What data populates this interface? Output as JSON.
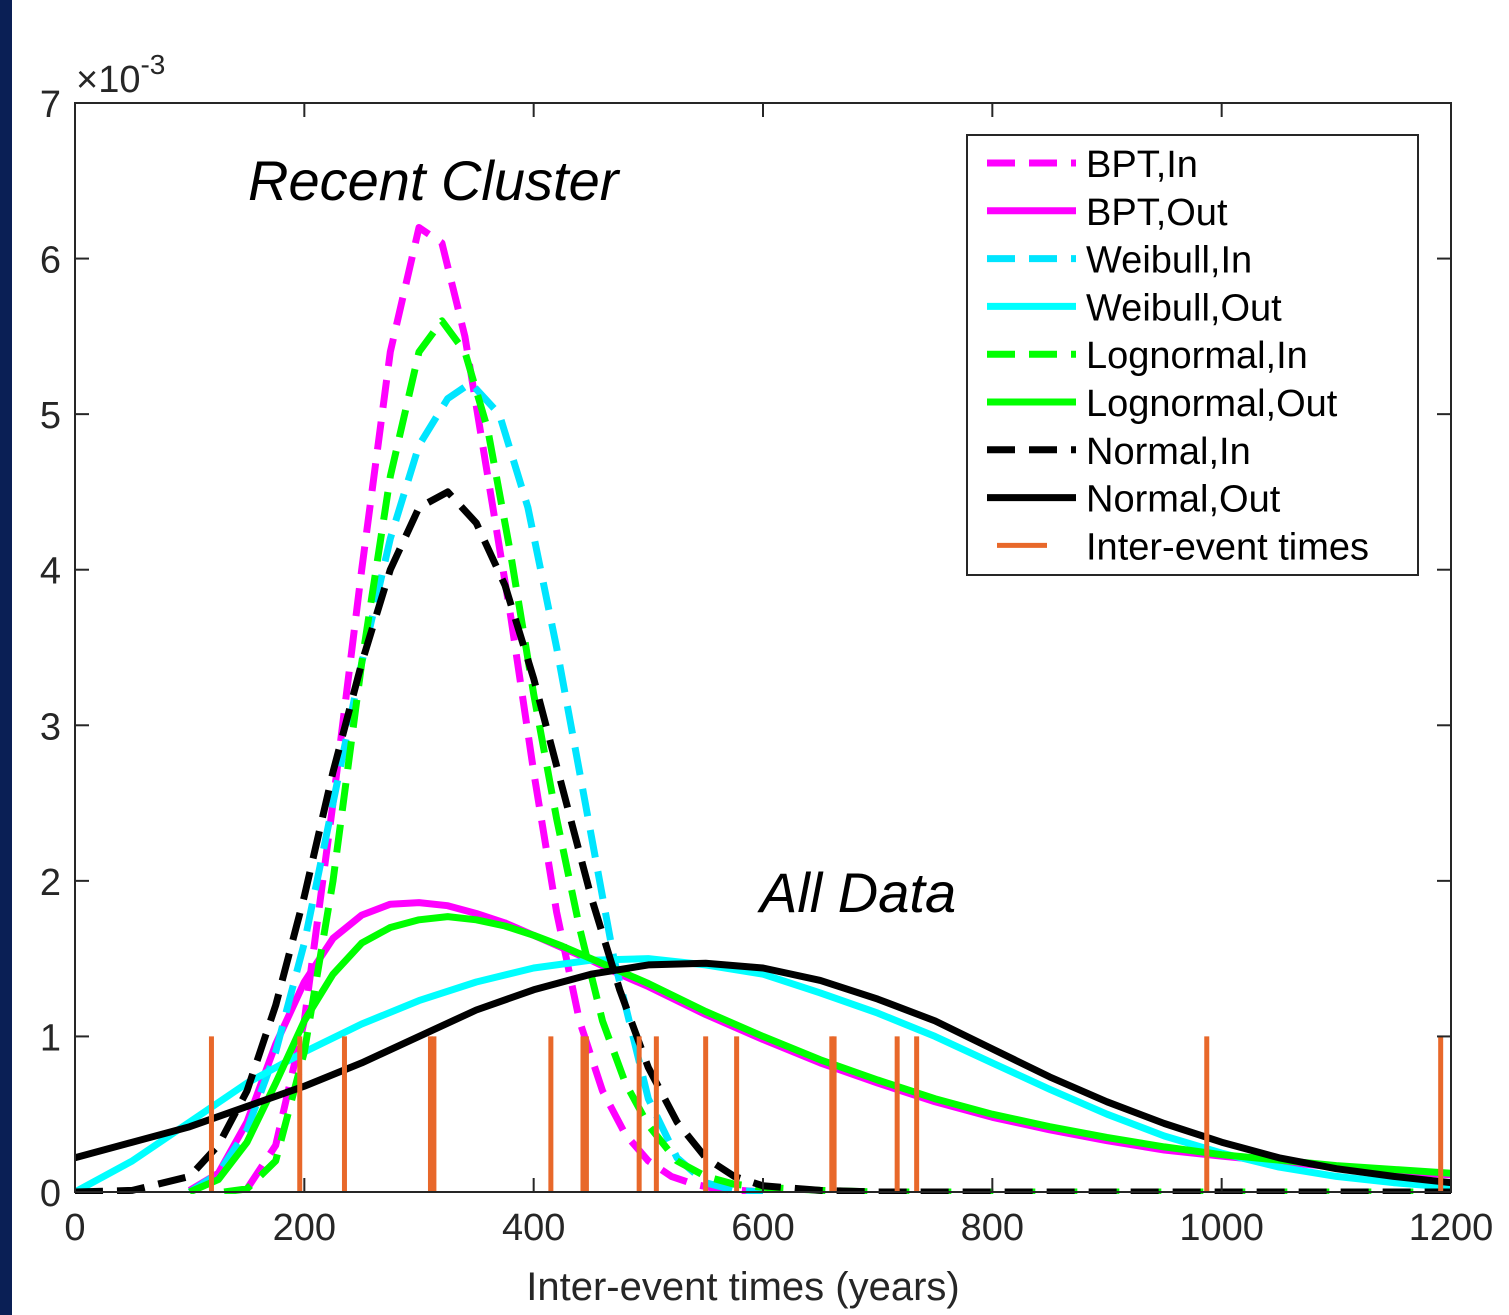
{
  "chart_data": {
    "type": "line",
    "xlabel": "Inter-event times (years)",
    "ylabel": "",
    "xlim": [
      0,
      1200
    ],
    "ylim": [
      0,
      0.007
    ],
    "y_scale_exponent": "×10",
    "y_scale_power": "-3",
    "x_ticks": [
      0,
      200,
      400,
      600,
      800,
      1000,
      1200
    ],
    "x_tick_labels": [
      "0",
      "200",
      "400",
      "600",
      "800",
      "1000",
      "1200"
    ],
    "y_ticks": [
      0,
      0.001,
      0.002,
      0.003,
      0.004,
      0.005,
      0.006,
      0.007
    ],
    "y_tick_labels": [
      "0",
      "1",
      "2",
      "3",
      "4",
      "5",
      "6",
      "7"
    ],
    "grid": false,
    "legend_position": "top-right",
    "annotations": [
      {
        "text": "Recent Cluster",
        "x": 340,
        "y": 0.0065
      },
      {
        "text": "All Data",
        "x": 700,
        "y": 0.00185
      }
    ],
    "series": [
      {
        "name": "BPT,In",
        "color": "#ff00ff",
        "dash": true,
        "x": [
          150,
          175,
          200,
          225,
          250,
          275,
          300,
          320,
          340,
          360,
          380,
          400,
          420,
          440,
          460,
          480,
          500,
          520,
          540,
          560,
          580,
          600
        ],
        "y": [
          2e-05,
          0.0003,
          0.0011,
          0.0025,
          0.004,
          0.0054,
          0.0062,
          0.0061,
          0.0055,
          0.0046,
          0.0037,
          0.0027,
          0.0018,
          0.0011,
          0.00065,
          0.00037,
          0.0002,
          0.0001,
          5e-05,
          2e-05,
          1e-05,
          0.0
        ]
      },
      {
        "name": "BPT,Out",
        "color": "#ff00ff",
        "dash": false,
        "x": [
          100,
          125,
          150,
          175,
          200,
          225,
          250,
          275,
          300,
          325,
          350,
          375,
          400,
          425,
          450,
          475,
          500,
          550,
          600,
          650,
          700,
          750,
          800,
          850,
          900,
          950,
          1000,
          1100,
          1200
        ],
        "y": [
          1e-05,
          0.00012,
          0.00045,
          0.00095,
          0.00135,
          0.00163,
          0.00178,
          0.00185,
          0.00186,
          0.00184,
          0.00179,
          0.00173,
          0.00165,
          0.00157,
          0.00149,
          0.0014,
          0.00132,
          0.00114,
          0.00098,
          0.00083,
          0.0007,
          0.00058,
          0.00048,
          0.0004,
          0.00033,
          0.00027,
          0.00023,
          0.00016,
          0.00011
        ]
      },
      {
        "name": "Weibull,In",
        "color": "#00e5ff",
        "dash": true,
        "x": [
          100,
          125,
          150,
          175,
          200,
          225,
          250,
          275,
          300,
          325,
          345,
          370,
          395,
          420,
          445,
          470,
          500,
          525,
          550,
          575,
          600
        ],
        "y": [
          0.0,
          0.00012,
          0.0004,
          0.0009,
          0.0016,
          0.0025,
          0.0034,
          0.0042,
          0.0048,
          0.0051,
          0.0052,
          0.005,
          0.0044,
          0.0035,
          0.0025,
          0.0015,
          0.0006,
          0.00022,
          6e-05,
          1e-05,
          0.0
        ]
      },
      {
        "name": "Weibull,Out",
        "color": "#00ffff",
        "dash": false,
        "x": [
          0,
          50,
          100,
          150,
          200,
          250,
          300,
          350,
          400,
          450,
          500,
          550,
          600,
          650,
          700,
          750,
          800,
          850,
          900,
          950,
          1000,
          1050,
          1100,
          1150,
          1200
        ],
        "y": [
          0.0,
          0.0002,
          0.00045,
          0.0007,
          0.0009,
          0.00108,
          0.00123,
          0.00135,
          0.00144,
          0.00149,
          0.0015,
          0.00146,
          0.0014,
          0.00128,
          0.00115,
          0.001,
          0.00083,
          0.00066,
          0.0005,
          0.00036,
          0.00025,
          0.00016,
          0.0001,
          6e-05,
          3e-05
        ]
      },
      {
        "name": "Lognormal,In",
        "color": "#00ff00",
        "dash": true,
        "x": [
          130,
          150,
          175,
          200,
          225,
          250,
          275,
          300,
          320,
          340,
          360,
          380,
          400,
          420,
          440,
          460,
          480,
          500,
          525,
          550,
          575,
          600,
          650,
          700,
          800,
          1200
        ],
        "y": [
          0.0,
          2e-05,
          0.0002,
          0.0009,
          0.002,
          0.0034,
          0.0046,
          0.0054,
          0.0056,
          0.0054,
          0.0049,
          0.0041,
          0.0032,
          0.0024,
          0.0017,
          0.0011,
          0.0007,
          0.00043,
          0.0002,
          0.0001,
          5e-05,
          3e-05,
          1e-05,
          0.0,
          0.0,
          0.0
        ]
      },
      {
        "name": "Lognormal,Out",
        "color": "#00ff00",
        "dash": false,
        "x": [
          100,
          125,
          150,
          175,
          200,
          225,
          250,
          275,
          300,
          325,
          350,
          375,
          400,
          425,
          450,
          475,
          500,
          550,
          600,
          650,
          700,
          750,
          800,
          850,
          900,
          950,
          1000,
          1100,
          1200
        ],
        "y": [
          0.0,
          8e-05,
          0.00032,
          0.0007,
          0.0011,
          0.0014,
          0.0016,
          0.0017,
          0.00175,
          0.00177,
          0.00175,
          0.00171,
          0.00165,
          0.00158,
          0.0015,
          0.00142,
          0.00134,
          0.00116,
          0.001,
          0.00085,
          0.00072,
          0.0006,
          0.0005,
          0.00042,
          0.00035,
          0.00029,
          0.00024,
          0.00017,
          0.00012
        ]
      },
      {
        "name": "Normal,In",
        "color": "#000000",
        "dash": true,
        "x": [
          0,
          50,
          100,
          125,
          150,
          175,
          200,
          225,
          250,
          275,
          300,
          325,
          350,
          375,
          400,
          425,
          450,
          475,
          500,
          525,
          550,
          575,
          600,
          650,
          700,
          800,
          1200
        ],
        "y": [
          0.0,
          1e-05,
          0.0001,
          0.0003,
          0.00065,
          0.0012,
          0.0019,
          0.0027,
          0.0034,
          0.004,
          0.0044,
          0.0045,
          0.0043,
          0.0039,
          0.0033,
          0.0026,
          0.0019,
          0.0013,
          0.0008,
          0.00045,
          0.00022,
          0.0001,
          4e-05,
          1e-05,
          0.0,
          0.0,
          0.0
        ]
      },
      {
        "name": "Normal,Out",
        "color": "#000000",
        "dash": false,
        "x": [
          0,
          50,
          100,
          150,
          200,
          250,
          300,
          350,
          400,
          450,
          500,
          550,
          600,
          650,
          700,
          750,
          800,
          850,
          900,
          950,
          1000,
          1050,
          1100,
          1150,
          1200
        ],
        "y": [
          0.00022,
          0.00032,
          0.00042,
          0.00055,
          0.00068,
          0.00083,
          0.001,
          0.00117,
          0.0013,
          0.0014,
          0.00146,
          0.00147,
          0.00144,
          0.00136,
          0.00124,
          0.0011,
          0.00092,
          0.00074,
          0.00058,
          0.00044,
          0.00032,
          0.00022,
          0.00015,
          0.0001,
          6e-05
        ]
      }
    ],
    "inter_event_times": {
      "name": "Inter-event times",
      "color": "#e8682a",
      "height": 0.001,
      "values": [
        119,
        196,
        235,
        310,
        313,
        415,
        443,
        446,
        492,
        507,
        550,
        577,
        660,
        662,
        717,
        734,
        987,
        1191
      ]
    }
  }
}
